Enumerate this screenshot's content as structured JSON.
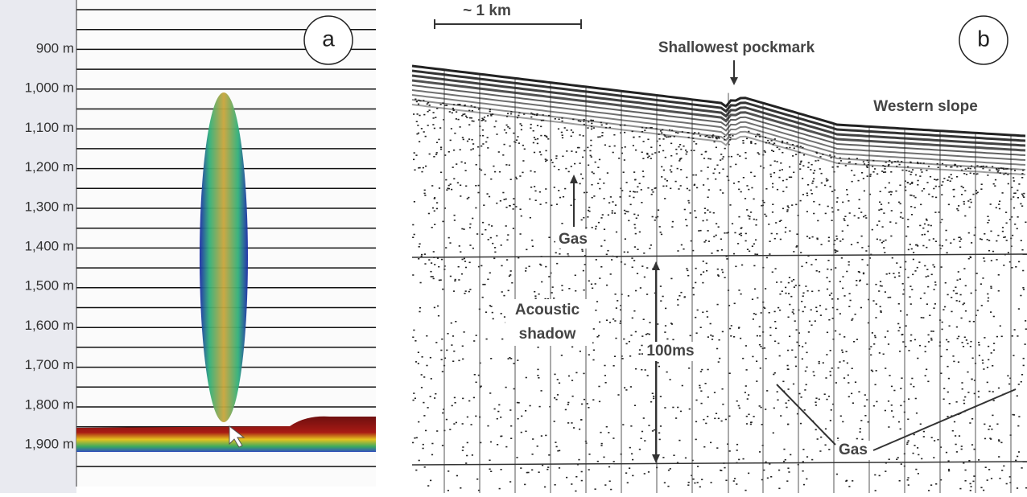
{
  "panel_a": {
    "label": "a",
    "depth_labels": [
      "900 m",
      "1,000 m",
      "1,100 m",
      "1,200 m",
      "1,300 m",
      "1,400 m",
      "1,500 m",
      "1,600 m",
      "1,700 m",
      "1,800 m",
      "1,900 m"
    ]
  },
  "panel_b": {
    "label": "b",
    "scale_label": "~ 1 km",
    "annotations": {
      "pockmark": "Shallowest pockmark",
      "slope": "Western slope",
      "gas_upper": "Gas",
      "shadow_1": "Acoustic",
      "shadow_2": "shadow",
      "twt": "100ms",
      "gas_lower": "Gas"
    }
  }
}
